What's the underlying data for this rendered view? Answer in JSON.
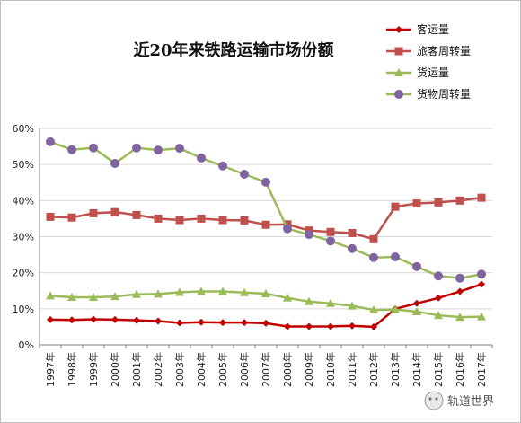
{
  "chart_data": {
    "type": "line",
    "title": "近20年来铁路运输市场份额",
    "categories": [
      "1997年",
      "1998年",
      "1999年",
      "2000年",
      "2001年",
      "2002年",
      "2003年",
      "2004年",
      "2005年",
      "2006年",
      "2007年",
      "2008年",
      "2009年",
      "2010年",
      "2011年",
      "2012年",
      "2013年",
      "2014年",
      "2015年",
      "2016年",
      "2017年"
    ],
    "y_ticks": [
      "0%",
      "10%",
      "20%",
      "30%",
      "40%",
      "50%",
      "60%"
    ],
    "ylim": [
      0,
      60
    ],
    "grid": true,
    "legend_position": "top-right",
    "series": [
      {
        "name": "客运量",
        "color": "#c00000",
        "marker": "diamond",
        "values": [
          7.0,
          6.9,
          7.1,
          7.0,
          6.8,
          6.6,
          6.1,
          6.3,
          6.2,
          6.2,
          6.0,
          5.1,
          5.1,
          5.1,
          5.3,
          5.0,
          10.0,
          11.5,
          13.0,
          14.8,
          16.8
        ]
      },
      {
        "name": "旅客周转量",
        "color": "#c0504d",
        "marker": "square",
        "values": [
          35.5,
          35.3,
          36.5,
          36.8,
          36.0,
          35.0,
          34.6,
          35.0,
          34.6,
          34.5,
          33.3,
          33.4,
          31.7,
          31.3,
          31.0,
          29.3,
          38.3,
          39.2,
          39.5,
          40.0,
          40.8
        ]
      },
      {
        "name": "货运量",
        "color": "#9bbb59",
        "marker": "triangle",
        "values": [
          13.6,
          13.2,
          13.2,
          13.4,
          14.0,
          14.1,
          14.6,
          14.8,
          14.8,
          14.5,
          14.2,
          13.0,
          12.0,
          11.5,
          10.8,
          9.7,
          9.8,
          9.2,
          8.2,
          7.7,
          7.8
        ]
      },
      {
        "name": "货物周转量",
        "color": "#8064a2",
        "line_color": "#9bbb59",
        "marker": "circle",
        "values": [
          56.3,
          54.1,
          54.6,
          50.3,
          54.6,
          54.0,
          54.5,
          51.8,
          49.6,
          47.3,
          45.1,
          32.2,
          30.6,
          28.8,
          26.7,
          24.2,
          24.4,
          21.7,
          19.1,
          18.5,
          19.6
        ]
      }
    ]
  },
  "watermark": {
    "text": "轨道世界",
    "icon": "wechat-icon"
  }
}
